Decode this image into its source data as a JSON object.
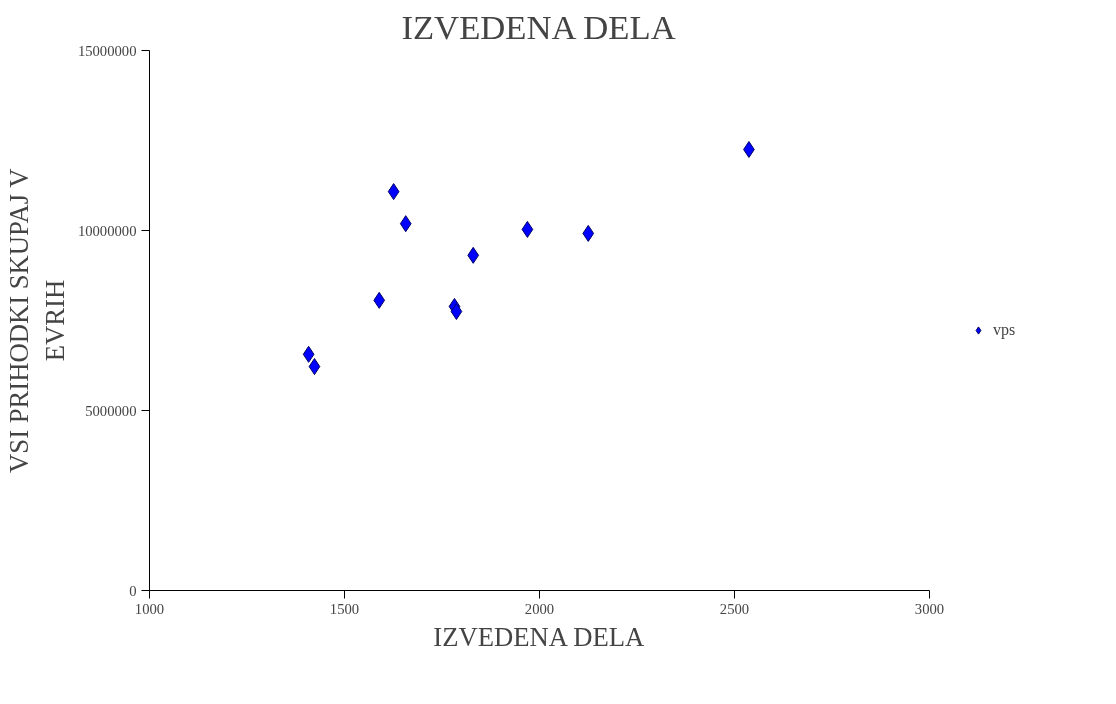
{
  "chart_data": {
    "type": "scatter",
    "title": "IZVEDENA DELA",
    "xlabel": "IZVEDENA DELA",
    "ylabel": "VSI PRIHODKI SKUPAJ V EVRIH",
    "xlim": [
      1000,
      3000
    ],
    "xticks": [
      1000,
      1500,
      2000,
      2500,
      3000
    ],
    "ylim": [
      0,
      15000000
    ],
    "yticks": [
      0,
      5000000,
      10000000,
      15000000
    ],
    "grid": false,
    "legend": "right",
    "marker": "diamond",
    "series": [
      {
        "name": "vps",
        "color": "#0000ff",
        "x": [
          1408,
          1423,
          1589,
          1626,
          1657,
          1782,
          1787,
          1830,
          1969,
          2125,
          2537
        ],
        "values": [
          6560000,
          6220000,
          8060000,
          11080000,
          10190000,
          7890000,
          7750000,
          9310000,
          10030000,
          9920000,
          12250000
        ]
      }
    ]
  }
}
